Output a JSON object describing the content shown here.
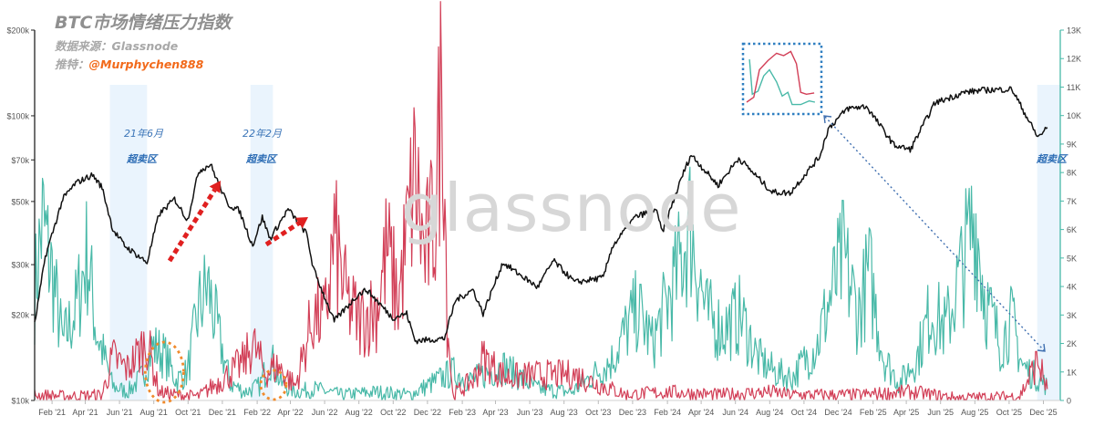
{
  "header": {
    "title": "BTC市场情绪压力指数",
    "source_label": "数据来源：",
    "source_value": "Glassnode",
    "twitter_label": "推特：",
    "twitter_handle": "@Murphychen888"
  },
  "watermark": "glassnode",
  "annotations": {
    "zone1_date": "21年6月",
    "zone1_label": "超卖区",
    "zone2_date": "22年2月",
    "zone2_label": "超卖区",
    "zone3_label": "超卖区"
  },
  "colors": {
    "price": "#111111",
    "buy_pressure": "#49b9a8",
    "sell_pressure": "#d23f57",
    "zone": "#eaf4fd",
    "ellipse": "#f08a2c",
    "arrow": "#e02020",
    "inset_border": "#2f7fc1",
    "connector": "#3f6fb0"
  },
  "chart_data": {
    "type": "line",
    "x_ticks": [
      "Feb '21",
      "Apr '21",
      "Jun '21",
      "Aug '21",
      "Oct '21",
      "Dec '21",
      "Feb '22",
      "Apr '22",
      "Jun '22",
      "Aug '22",
      "Oct '22",
      "Dec '22",
      "Feb '23",
      "Apr '23",
      "Jun '23",
      "Aug '23",
      "Oct '23",
      "Dec '23",
      "Feb '24",
      "Apr '24",
      "Jun '24",
      "Aug '24",
      "Oct '24",
      "Dec '24",
      "Feb '25",
      "Apr '25",
      "Jun '25",
      "Aug '25",
      "Oct '25",
      "Dec '25"
    ],
    "y_left": {
      "scale": "log",
      "range": [
        10000,
        200000
      ],
      "ticks": [
        10000,
        20000,
        30000,
        50000,
        70000,
        100000,
        200000
      ],
      "tick_labels": [
        "$10k",
        "$20k",
        "$30k",
        "$50k",
        "$70k",
        "$100k",
        "$200k"
      ]
    },
    "y_right": {
      "scale": "linear",
      "range": [
        0,
        13000
      ],
      "ticks": [
        0,
        1000,
        2000,
        3000,
        4000,
        5000,
        6000,
        7000,
        8000,
        9000,
        10000,
        11000,
        12000,
        13000
      ],
      "tick_labels": [
        "0",
        "1K",
        "2K",
        "3K",
        "4K",
        "5K",
        "6K",
        "7K",
        "8K",
        "9K",
        "10K",
        "11K",
        "12K",
        "13K"
      ]
    },
    "shaded_zones": [
      [
        "2021-05-15",
        "2021-07-20"
      ],
      [
        "2022-01-20",
        "2022-03-01"
      ],
      [
        "2025-11-20",
        "2025-12-31"
      ]
    ],
    "series": [
      {
        "axis": "left",
        "points": [
          [
            "2021-01-01",
            18500
          ],
          [
            "2021-01-20",
            32000
          ],
          [
            "2021-02-20",
            51000
          ],
          [
            "2021-03-15",
            58000
          ],
          [
            "2021-04-14",
            62000
          ],
          [
            "2021-05-01",
            56000
          ],
          [
            "2021-05-20",
            40000
          ],
          [
            "2021-06-10",
            35000
          ],
          [
            "2021-07-20",
            30500
          ],
          [
            "2021-08-10",
            45000
          ],
          [
            "2021-09-07",
            51000
          ],
          [
            "2021-09-30",
            43000
          ],
          [
            "2021-10-20",
            64000
          ],
          [
            "2021-11-10",
            67500
          ],
          [
            "2021-12-10",
            49000
          ],
          [
            "2021-12-31",
            46500
          ],
          [
            "2022-01-24",
            35000
          ],
          [
            "2022-02-10",
            44000
          ],
          [
            "2022-02-24",
            37000
          ],
          [
            "2022-03-28",
            47000
          ],
          [
            "2022-04-30",
            38500
          ],
          [
            "2022-05-12",
            29000
          ],
          [
            "2022-06-18",
            19000
          ],
          [
            "2022-07-30",
            23500
          ],
          [
            "2022-08-15",
            24500
          ],
          [
            "2022-09-30",
            19500
          ],
          [
            "2022-10-25",
            20200
          ],
          [
            "2022-11-09",
            16200
          ],
          [
            "2022-12-31",
            16500
          ],
          [
            "2023-01-20",
            22500
          ],
          [
            "2023-02-20",
            24500
          ],
          [
            "2023-03-10",
            20200
          ],
          [
            "2023-04-14",
            30500
          ],
          [
            "2023-06-15",
            25000
          ],
          [
            "2023-07-13",
            31000
          ],
          [
            "2023-08-20",
            26000
          ],
          [
            "2023-10-10",
            27000
          ],
          [
            "2023-10-25",
            34500
          ],
          [
            "2023-12-05",
            44000
          ],
          [
            "2024-01-11",
            47000
          ],
          [
            "2024-01-23",
            39000
          ],
          [
            "2024-02-28",
            62000
          ],
          [
            "2024-03-14",
            73000
          ],
          [
            "2024-05-01",
            57000
          ],
          [
            "2024-06-07",
            71000
          ],
          [
            "2024-08-05",
            54000
          ],
          [
            "2024-09-06",
            53500
          ],
          [
            "2024-10-29",
            72000
          ],
          [
            "2024-11-13",
            90000
          ],
          [
            "2024-12-17",
            106000
          ],
          [
            "2025-01-20",
            108000
          ],
          [
            "2025-03-10",
            79000
          ],
          [
            "2025-04-08",
            76000
          ],
          [
            "2025-05-22",
            111000
          ],
          [
            "2025-07-14",
            121000
          ],
          [
            "2025-08-14",
            123000
          ],
          [
            "2025-10-06",
            124000
          ],
          [
            "2025-11-21",
            84000
          ],
          [
            "2025-12-08",
            91000
          ]
        ]
      },
      {
        "axis": "right",
        "points": [
          [
            "2021-01-01",
            3800
          ],
          [
            "2021-01-15",
            6300
          ],
          [
            "2021-02-05",
            4000
          ],
          [
            "2021-02-20",
            2000
          ],
          [
            "2021-03-15",
            3200
          ],
          [
            "2021-04-05",
            5200
          ],
          [
            "2021-04-20",
            2500
          ],
          [
            "2021-05-05",
            1500
          ],
          [
            "2021-05-20",
            500
          ],
          [
            "2021-06-15",
            300
          ],
          [
            "2021-07-10",
            800
          ],
          [
            "2021-07-30",
            1900
          ],
          [
            "2021-08-20",
            1600
          ],
          [
            "2021-09-10",
            700
          ],
          [
            "2021-09-30",
            1000
          ],
          [
            "2021-10-20",
            3200
          ],
          [
            "2021-11-05",
            4000
          ],
          [
            "2021-11-25",
            2200
          ],
          [
            "2021-12-15",
            600
          ],
          [
            "2022-01-10",
            300
          ],
          [
            "2022-02-05",
            500
          ],
          [
            "2022-02-25",
            1500
          ],
          [
            "2022-03-15",
            600
          ],
          [
            "2022-04-10",
            300
          ],
          [
            "2022-05-15",
            400
          ],
          [
            "2022-07-01",
            200
          ],
          [
            "2022-09-01",
            300
          ],
          [
            "2022-11-01",
            200
          ],
          [
            "2023-01-15",
            1000
          ],
          [
            "2023-02-15",
            700
          ],
          [
            "2023-04-15",
            1200
          ],
          [
            "2023-06-15",
            400
          ],
          [
            "2023-08-15",
            300
          ],
          [
            "2023-10-25",
            1400
          ],
          [
            "2023-11-20",
            2500
          ],
          [
            "2023-12-10",
            3200
          ],
          [
            "2024-01-05",
            2000
          ],
          [
            "2024-02-15",
            4200
          ],
          [
            "2024-03-12",
            6200
          ],
          [
            "2024-04-10",
            3000
          ],
          [
            "2024-05-10",
            2500
          ],
          [
            "2024-06-10",
            3000
          ],
          [
            "2024-07-10",
            1500
          ],
          [
            "2024-08-10",
            1000
          ],
          [
            "2024-09-10",
            800
          ],
          [
            "2024-10-25",
            2000
          ],
          [
            "2024-11-12",
            3300
          ],
          [
            "2024-12-10",
            5000
          ],
          [
            "2025-01-05",
            3000
          ],
          [
            "2025-01-25",
            4500
          ],
          [
            "2025-02-20",
            1500
          ],
          [
            "2025-03-20",
            600
          ],
          [
            "2025-04-20",
            1500
          ],
          [
            "2025-05-15",
            3200
          ],
          [
            "2025-06-10",
            2500
          ],
          [
            "2025-07-14",
            5000
          ],
          [
            "2025-08-01",
            6500
          ],
          [
            "2025-08-20",
            3500
          ],
          [
            "2025-09-15",
            2000
          ],
          [
            "2025-10-06",
            2800
          ],
          [
            "2025-10-25",
            1200
          ],
          [
            "2025-11-20",
            800
          ],
          [
            "2025-12-08",
            500
          ]
        ]
      },
      {
        "axis": "right",
        "points": [
          [
            "2021-01-01",
            200
          ],
          [
            "2021-03-01",
            150
          ],
          [
            "2021-05-01",
            200
          ],
          [
            "2021-05-20",
            1500
          ],
          [
            "2021-06-15",
            1100
          ],
          [
            "2021-07-20",
            2100
          ],
          [
            "2021-08-10",
            300
          ],
          [
            "2021-09-10",
            200
          ],
          [
            "2021-10-20",
            150
          ],
          [
            "2021-12-05",
            800
          ],
          [
            "2022-01-10",
            1400
          ],
          [
            "2022-01-24",
            2000
          ],
          [
            "2022-02-15",
            1000
          ],
          [
            "2022-03-10",
            1200
          ],
          [
            "2022-04-10",
            500
          ],
          [
            "2022-05-12",
            3000
          ],
          [
            "2022-06-01",
            2800
          ],
          [
            "2022-06-18",
            5700
          ],
          [
            "2022-07-10",
            3500
          ],
          [
            "2022-08-01",
            2800
          ],
          [
            "2022-09-01",
            3200
          ],
          [
            "2022-09-20",
            5300
          ],
          [
            "2022-10-10",
            3500
          ],
          [
            "2022-11-09",
            8000
          ],
          [
            "2022-11-25",
            5000
          ],
          [
            "2022-12-15",
            6500
          ],
          [
            "2022-12-28",
            12100
          ],
          [
            "2023-01-05",
            3000
          ],
          [
            "2023-01-15",
            200
          ],
          [
            "2023-02-20",
            700
          ],
          [
            "2023-03-10",
            1500
          ],
          [
            "2023-04-20",
            800
          ],
          [
            "2023-06-15",
            900
          ],
          [
            "2023-08-20",
            900
          ],
          [
            "2023-10-10",
            500
          ],
          [
            "2023-11-20",
            200
          ],
          [
            "2024-02-01",
            300
          ],
          [
            "2024-05-01",
            200
          ],
          [
            "2024-08-05",
            300
          ],
          [
            "2024-09-06",
            200
          ],
          [
            "2025-01-10",
            200
          ],
          [
            "2025-04-08",
            300
          ],
          [
            "2025-07-01",
            100
          ],
          [
            "2025-10-20",
            150
          ],
          [
            "2025-11-21",
            1400
          ],
          [
            "2025-12-08",
            400
          ]
        ]
      }
    ]
  }
}
